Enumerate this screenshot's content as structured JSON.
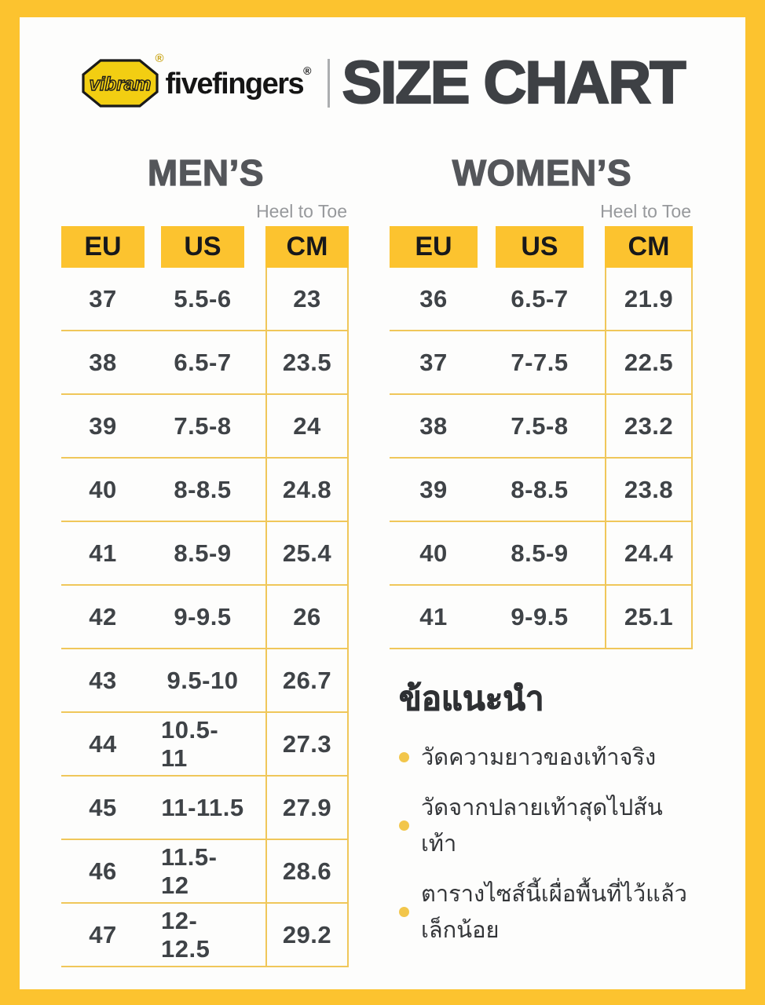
{
  "brand": {
    "vibram": "vibram",
    "fivefingers": "fivefingers",
    "reg": "®"
  },
  "title": "SIZE CHART",
  "colors": {
    "frame_yellow": "#FCC32F",
    "divider_yellow": "#F0C75A",
    "logo_yellow": "#F2CE12",
    "dark_text": "#3F4347",
    "note_gray": "#97999C"
  },
  "tables": {
    "men": {
      "section_title": "MEN’S",
      "note": "Heel to Toe",
      "columns": [
        "EU",
        "US",
        "CM"
      ],
      "rows": [
        [
          "37",
          "5.5-6",
          "23"
        ],
        [
          "38",
          "6.5-7",
          "23.5"
        ],
        [
          "39",
          "7.5-8",
          "24"
        ],
        [
          "40",
          "8-8.5",
          "24.8"
        ],
        [
          "41",
          "8.5-9",
          "25.4"
        ],
        [
          "42",
          "9-9.5",
          "26"
        ],
        [
          "43",
          "9.5-10",
          "26.7"
        ],
        [
          "44",
          "10.5-11",
          "27.3"
        ],
        [
          "45",
          "11-11.5",
          "27.9"
        ],
        [
          "46",
          "11.5-12",
          "28.6"
        ],
        [
          "47",
          "12-12.5",
          "29.2"
        ]
      ]
    },
    "women": {
      "section_title": "WOMEN’S",
      "note": "Heel to Toe",
      "columns": [
        "EU",
        "US",
        "CM"
      ],
      "rows": [
        [
          "36",
          "6.5-7",
          "21.9"
        ],
        [
          "37",
          "7-7.5",
          "22.5"
        ],
        [
          "38",
          "7.5-8",
          "23.2"
        ],
        [
          "39",
          "8-8.5",
          "23.8"
        ],
        [
          "40",
          "8.5-9",
          "24.4"
        ],
        [
          "41",
          "9-9.5",
          "25.1"
        ]
      ]
    }
  },
  "tips": {
    "heading": "ข้อแนะนำ",
    "items": [
      "วัดความยาวของเท้าจริง",
      "วัดจากปลายเท้าสุดไปส้นเท้า",
      "ตารางไซส์นี้เผื่อพื้นที่ไว้แล้วเล็กน้อย"
    ]
  }
}
